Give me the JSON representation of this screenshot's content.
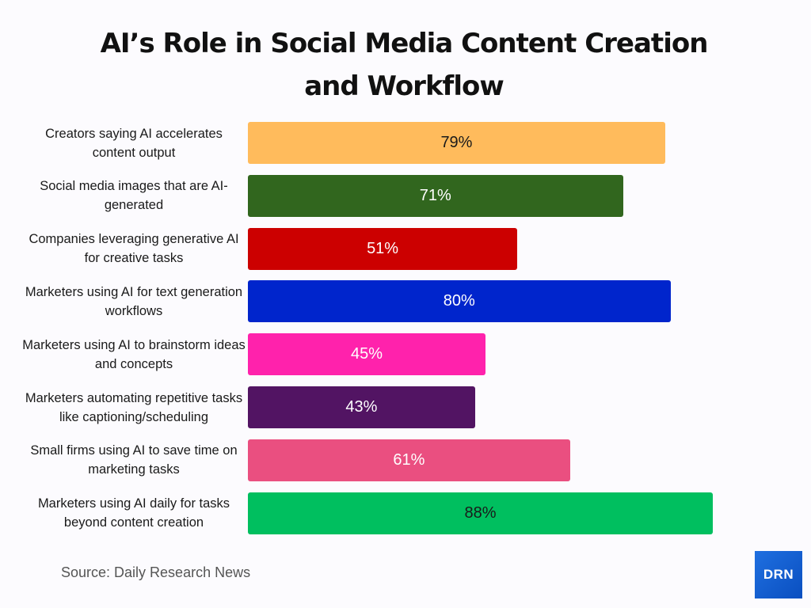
{
  "title_line1": "AI’s Role in Social Media Content Creation",
  "title_line2": "and Workflow",
  "source": "Source: Daily Research News",
  "logo_text": "DRN",
  "chart_data": {
    "type": "bar",
    "orientation": "horizontal",
    "title": "AI’s Role in Social Media Content Creation and Workflow",
    "xlabel": "",
    "ylabel": "",
    "xlim": [
      0,
      100
    ],
    "grid": false,
    "categories": [
      "Creators saying AI accelerates content output",
      "Social media images that are AI-generated",
      "Companies leveraging generative AI for creative tasks",
      "Marketers using AI for text generation workflows",
      "Marketers using AI to brainstorm ideas and concepts",
      "Marketers automating repetitive tasks like captioning/scheduling",
      "Small firms using AI to save time on marketing tasks",
      "Marketers using AI daily for tasks beyond content creation"
    ],
    "values": [
      79,
      71,
      51,
      80,
      45,
      43,
      61,
      88
    ],
    "value_labels": [
      "79%",
      "71%",
      "51%",
      "80%",
      "45%",
      "43%",
      "61%",
      "88%"
    ],
    "colors": [
      "#ffbb5c",
      "#31661e",
      "#cc0000",
      "#0025cc",
      "#ff22ac",
      "#521463",
      "#ea4f80",
      "#00bf5f"
    ],
    "label_colors": [
      "#1a1a1a",
      "#ffffff",
      "#ffffff",
      "#ffffff",
      "#ffffff",
      "#ffffff",
      "#ffffff",
      "#1a1a1a"
    ],
    "source": "Source: Daily Research News"
  }
}
